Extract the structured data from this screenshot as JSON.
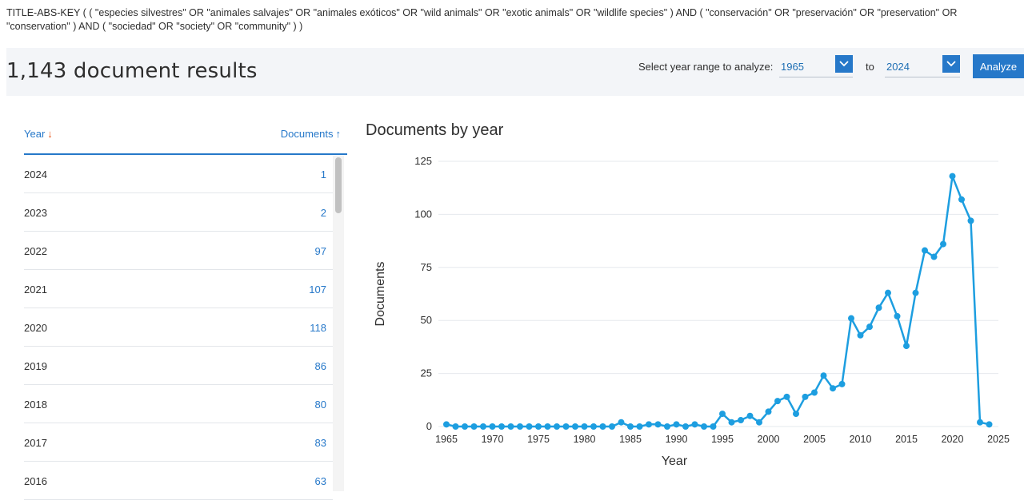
{
  "query": "TITLE-ABS-KEY ( ( \"especies silvestres\" OR \"animales salvajes\" OR \"animales exóticos\" OR \"wild animals\" OR \"exotic animals\" OR \"wildlife species\" ) AND ( \"conservación\" OR \"preservación\" OR \"preservation\" OR \"conservation\" ) AND ( \"sociedad\" OR \"society\" OR \"community\" ) )",
  "results": {
    "title": "1,143 document results"
  },
  "year_range": {
    "label": "Select year range to analyze:",
    "from": "1965",
    "to_label": "to",
    "to": "2024",
    "analyze_label": "Analyze"
  },
  "table": {
    "col_year": "Year",
    "col_docs": "Documents",
    "rows": [
      {
        "year": "2024",
        "count": "1"
      },
      {
        "year": "2023",
        "count": "2"
      },
      {
        "year": "2022",
        "count": "97"
      },
      {
        "year": "2021",
        "count": "107"
      },
      {
        "year": "2020",
        "count": "118"
      },
      {
        "year": "2019",
        "count": "86"
      },
      {
        "year": "2018",
        "count": "80"
      },
      {
        "year": "2017",
        "count": "83"
      },
      {
        "year": "2016",
        "count": "63"
      }
    ]
  },
  "chart_data": {
    "type": "line",
    "title": "Documents by year",
    "xlabel": "Year",
    "ylabel": "Documents",
    "xlim": [
      1965,
      2025
    ],
    "ylim": [
      0,
      125
    ],
    "xticks": [
      "1965",
      "1970",
      "1975",
      "1980",
      "1985",
      "1990",
      "1995",
      "2000",
      "2005",
      "2010",
      "2015",
      "2020",
      "2025"
    ],
    "yticks": [
      "0",
      "25",
      "50",
      "75",
      "100",
      "125"
    ],
    "grid": true,
    "color": "#1d9ee0",
    "series": [
      {
        "x": [
          1965,
          1966,
          1967,
          1968,
          1969,
          1970,
          1971,
          1972,
          1973,
          1974,
          1975,
          1976,
          1977,
          1978,
          1979,
          1980,
          1981,
          1982,
          1983,
          1984,
          1985,
          1986,
          1987,
          1988,
          1989,
          1990,
          1991,
          1992,
          1993,
          1994,
          1995,
          1996,
          1997,
          1998,
          1999,
          2000,
          2001,
          2002,
          2003,
          2004,
          2005,
          2006,
          2007,
          2008,
          2009,
          2010,
          2011,
          2012,
          2013,
          2014,
          2015,
          2016,
          2017,
          2018,
          2019,
          2020,
          2021,
          2022,
          2023,
          2024
        ],
        "values": [
          1,
          0,
          0,
          0,
          0,
          0,
          0,
          0,
          0,
          0,
          0,
          0,
          0,
          0,
          0,
          0,
          0,
          0,
          0,
          2,
          0,
          0,
          1,
          1,
          0,
          1,
          0,
          1,
          0,
          0,
          6,
          2,
          3,
          5,
          2,
          7,
          12,
          14,
          6,
          14,
          16,
          24,
          18,
          20,
          51,
          43,
          47,
          56,
          63,
          52,
          38,
          63,
          83,
          80,
          86,
          118,
          107,
          97,
          2,
          1
        ]
      }
    ]
  }
}
